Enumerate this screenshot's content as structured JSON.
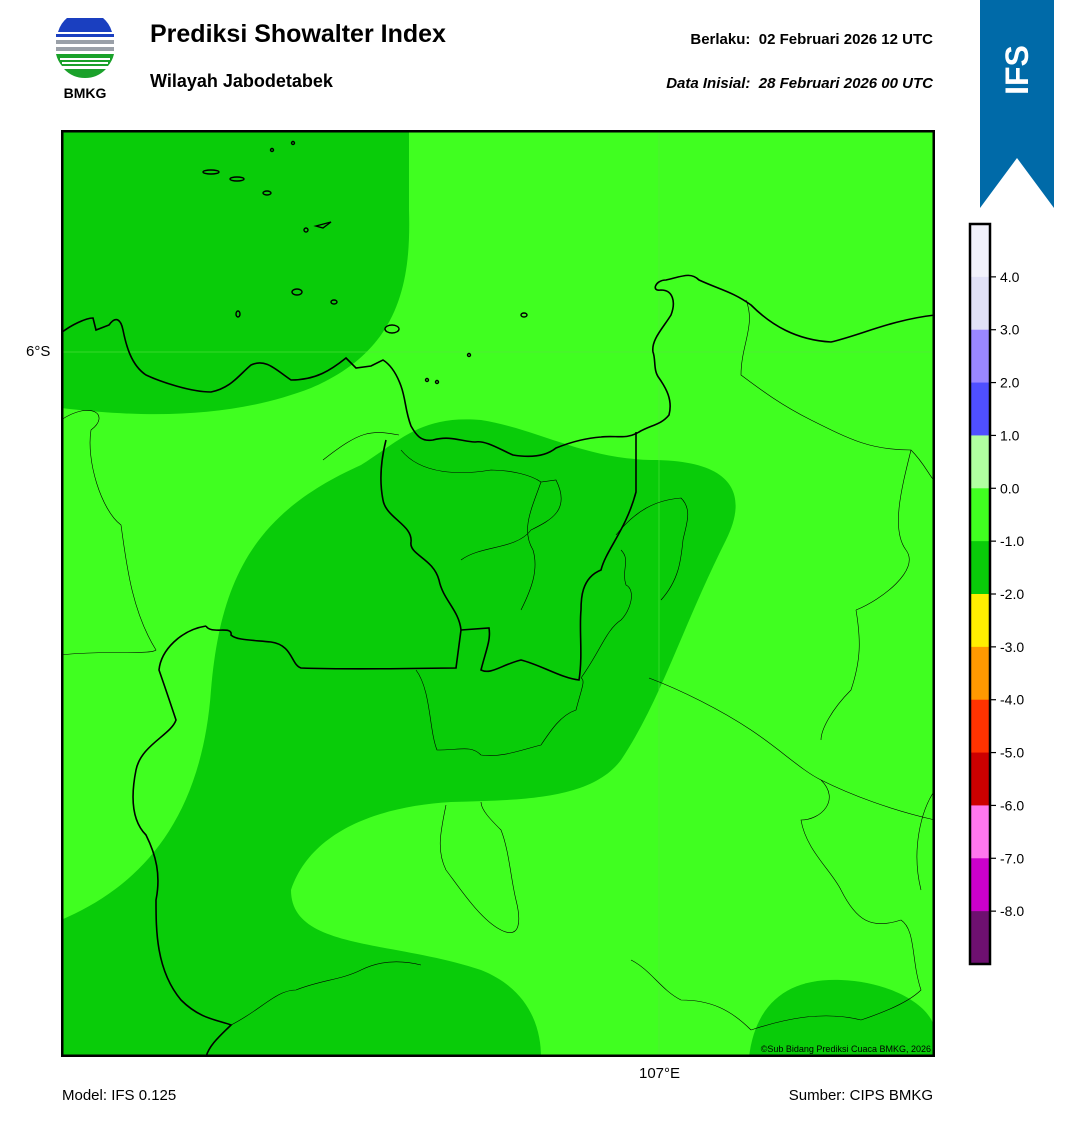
{
  "header": {
    "title": "Prediksi Showalter Index",
    "subtitle": "Wilayah Jabodetabek",
    "valid_label": "Berlaku:",
    "valid_value": "02 Februari 2026 12 UTC",
    "init_label": "Data Inisial:",
    "init_value": "28 Februari 2026 00 UTC"
  },
  "logo": {
    "text": "BMKG",
    "icon": "bmkg-logo-icon"
  },
  "ribbon": {
    "text": "IFS",
    "color": "#006aa8"
  },
  "map": {
    "lat_label": "6°S",
    "lon_label": "107°E",
    "copyright": "©Sub Bidang Prediksi Cuaca BMKG, 2026"
  },
  "colorbar": {
    "labels": [
      "4.0",
      "3.0",
      "2.0",
      "1.0",
      "0.0",
      "-1.0",
      "-2.0",
      "-3.0",
      "-4.0",
      "-5.0",
      "-6.0",
      "-7.0",
      "-8.0"
    ],
    "colors": [
      "#f2f2fb",
      "#e1e1f7",
      "#9b87ff",
      "#4f4fff",
      "#b0ffa0",
      "#40ff20",
      "#09cc09",
      "#ffee00",
      "#ff9900",
      "#ff3300",
      "#cc0000",
      "#ff77ee",
      "#cc00cc",
      "#6e1070"
    ]
  },
  "footer": {
    "model": "Model: IFS 0.125",
    "source": "Sumber: CIPS BMKG"
  }
}
